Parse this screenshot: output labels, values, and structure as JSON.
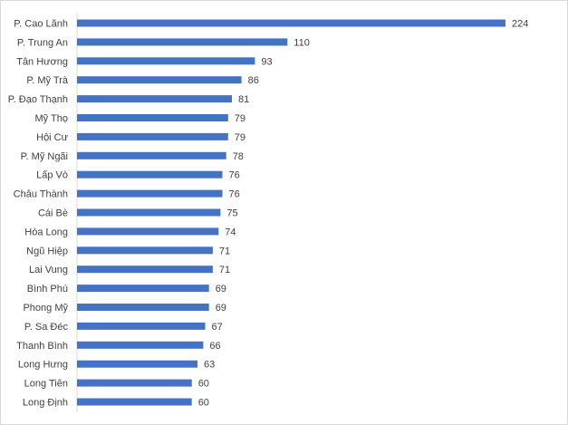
{
  "chart_data": {
    "type": "bar",
    "orientation": "horizontal",
    "title": "",
    "xlabel": "",
    "ylabel": "",
    "categories": [
      "P. Cao Lãnh",
      "P. Trung An",
      "Tân Hương",
      "P. Mỹ Trà",
      "P. Đạo Thạnh",
      "Mỹ Thọ",
      "Hội Cư",
      "P. Mỹ Ngãi",
      "Lấp Vò",
      "Châu Thành",
      "Cái Bè",
      "Hòa Long",
      "Ngũ Hiệp",
      "Lai Vung",
      "Bình Phú",
      "Phong Mỹ",
      "P. Sa Đéc",
      "Thanh Bình",
      "Long Hưng",
      "Long Tiên",
      "Long Định"
    ],
    "values": [
      224,
      110,
      93,
      86,
      81,
      79,
      79,
      78,
      76,
      76,
      75,
      74,
      71,
      71,
      69,
      69,
      67,
      66,
      63,
      60,
      60
    ],
    "xlim": [
      0,
      240
    ],
    "grid": false,
    "legend": "none",
    "data_labels": true,
    "bar_color": "#4472c4",
    "label_color": "#404040",
    "axis_color": "#d9d9d9"
  }
}
